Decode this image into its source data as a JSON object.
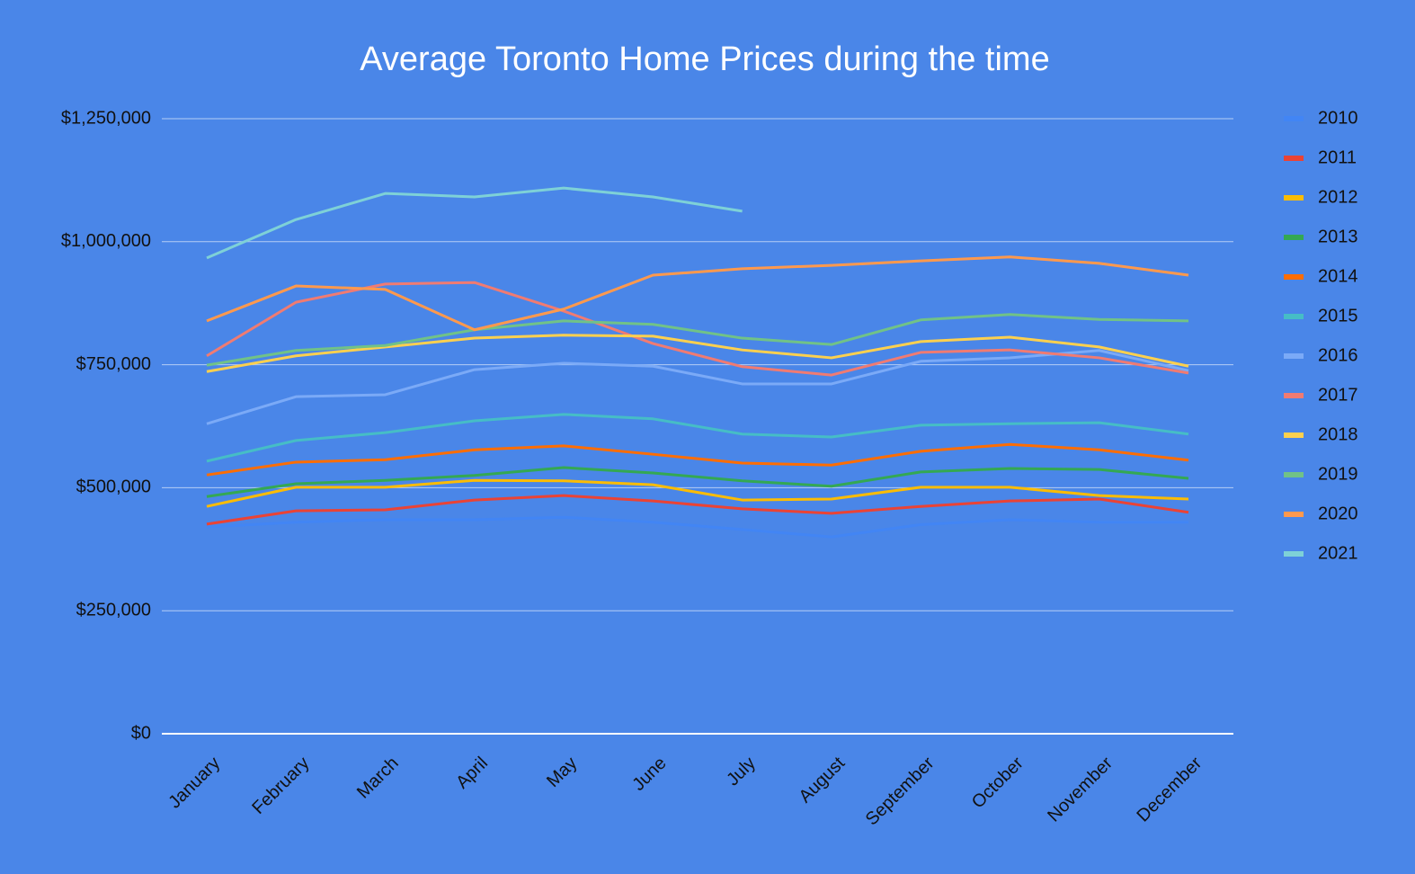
{
  "chart_data": {
    "type": "line",
    "title": "Average Toronto Home Prices during the time",
    "categories": [
      "January",
      "February",
      "March",
      "April",
      "May",
      "June",
      "July",
      "August",
      "September",
      "October",
      "November",
      "December"
    ],
    "ylim": [
      0,
      1250000
    ],
    "yticks": [
      {
        "value": 0,
        "label": "$0"
      },
      {
        "value": 250000,
        "label": "$250,000"
      },
      {
        "value": 500000,
        "label": "$500,000"
      },
      {
        "value": 750000,
        "label": "$750,000"
      },
      {
        "value": 1000000,
        "label": "$1,000,000"
      },
      {
        "value": 1250000,
        "label": "$1,250,000"
      }
    ],
    "grid": true,
    "legend": "right",
    "series": [
      {
        "name": "2010",
        "color": "#4285f4",
        "values": [
          420000,
          430000,
          435000,
          435000,
          440000,
          430000,
          415000,
          400000,
          425000,
          435000,
          430000,
          430000
        ]
      },
      {
        "name": "2011",
        "color": "#ea4335",
        "values": [
          426000,
          453000,
          455000,
          475000,
          484000,
          473000,
          457000,
          448000,
          462000,
          473000,
          477000,
          450000
        ]
      },
      {
        "name": "2012",
        "color": "#fbbc04",
        "values": [
          462000,
          501000,
          501000,
          515000,
          514000,
          506000,
          475000,
          477000,
          501000,
          501000,
          484000,
          477000
        ]
      },
      {
        "name": "2013",
        "color": "#34a853",
        "values": [
          482000,
          508000,
          515000,
          525000,
          541000,
          530000,
          514000,
          503000,
          532000,
          539000,
          537000,
          519000
        ]
      },
      {
        "name": "2014",
        "color": "#ff6d01",
        "values": [
          526000,
          552000,
          557000,
          577000,
          585000,
          568000,
          550000,
          546000,
          574000,
          588000,
          577000,
          556000
        ]
      },
      {
        "name": "2015",
        "color": "#46bdc6",
        "values": [
          554000,
          596000,
          612000,
          636000,
          649000,
          640000,
          609000,
          603000,
          627000,
          630000,
          632000,
          609000
        ]
      },
      {
        "name": "2016",
        "color": "#7baaf7",
        "values": [
          630000,
          685000,
          689000,
          740000,
          753000,
          747000,
          711000,
          711000,
          757000,
          764000,
          779000,
          738000
        ]
      },
      {
        "name": "2017",
        "color": "#f07b72",
        "values": [
          768000,
          877000,
          914000,
          917000,
          859000,
          793000,
          746000,
          729000,
          775000,
          780000,
          764000,
          733000
        ]
      },
      {
        "name": "2018",
        "color": "#fcd04f",
        "values": [
          736000,
          768000,
          786000,
          804000,
          810000,
          808000,
          780000,
          764000,
          797000,
          806000,
          786000,
          747000
        ]
      },
      {
        "name": "2019",
        "color": "#71c287",
        "values": [
          749000,
          779000,
          789000,
          821000,
          839000,
          832000,
          804000,
          791000,
          841000,
          852000,
          842000,
          839000
        ]
      },
      {
        "name": "2020",
        "color": "#ff994d",
        "values": [
          839000,
          910000,
          903000,
          821000,
          863000,
          932000,
          945000,
          952000,
          961000,
          969000,
          956000,
          932000
        ]
      },
      {
        "name": "2021",
        "color": "#7ed1d7",
        "values": [
          967000,
          1045000,
          1098000,
          1091000,
          1109000,
          1091000,
          1062000,
          null,
          null,
          null,
          null,
          null
        ]
      }
    ]
  }
}
